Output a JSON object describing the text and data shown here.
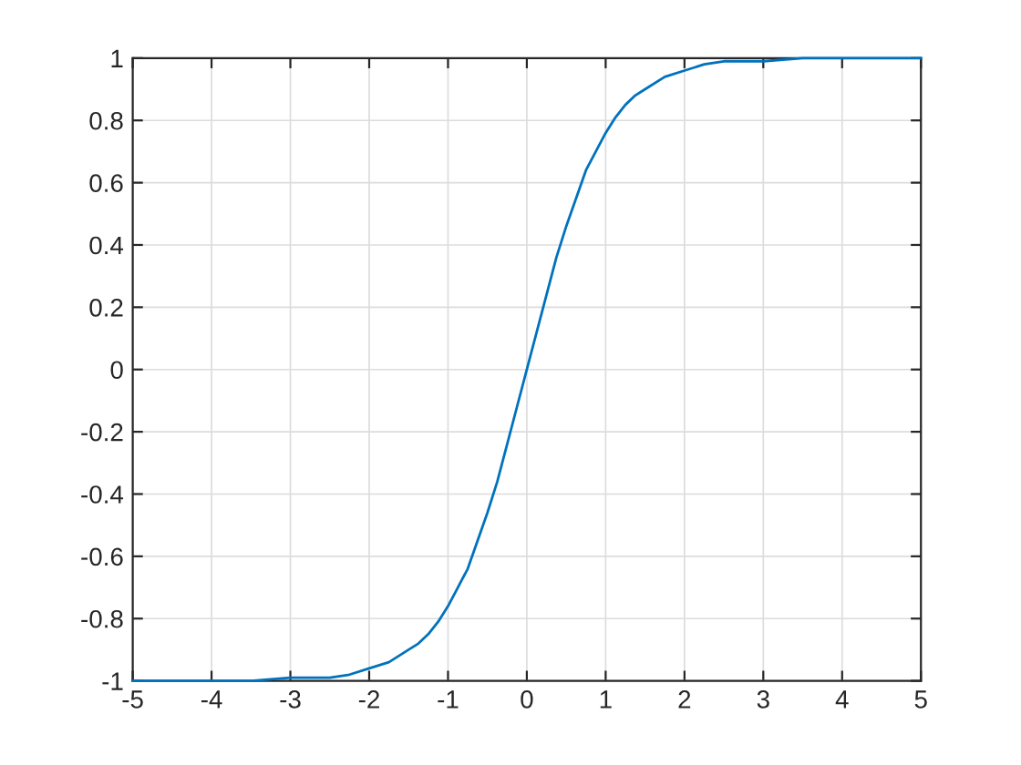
{
  "chart_data": {
    "type": "line",
    "x": [
      -5,
      -4,
      -3.5,
      -3,
      -2.75,
      -2.5,
      -2.25,
      -2,
      -1.75,
      -1.5,
      -1.375,
      -1.25,
      -1.125,
      -1,
      -0.875,
      -0.75,
      -0.625,
      -0.5,
      -0.375,
      -0.25,
      -0.125,
      0,
      0.125,
      0.25,
      0.375,
      0.5,
      0.625,
      0.75,
      0.875,
      1,
      1.125,
      1.25,
      1.375,
      1.5,
      1.75,
      2,
      2.25,
      2.5,
      2.75,
      3,
      3.5,
      4,
      5
    ],
    "series": [
      {
        "color": "#0072bd",
        "values": [
          -1.0,
          -1.0,
          -1.0,
          -0.99,
          -0.99,
          -0.99,
          -0.98,
          -0.96,
          -0.94,
          -0.9,
          -0.88,
          -0.85,
          -0.81,
          -0.76,
          -0.7,
          -0.64,
          -0.55,
          -0.46,
          -0.36,
          -0.24,
          -0.12,
          0,
          0.12,
          0.24,
          0.36,
          0.46,
          0.55,
          0.64,
          0.7,
          0.76,
          0.81,
          0.85,
          0.88,
          0.9,
          0.94,
          0.96,
          0.98,
          0.99,
          0.99,
          0.99,
          1.0,
          1.0,
          1.0
        ]
      }
    ],
    "xlim": [
      -5,
      5
    ],
    "xticks": [
      -5,
      -4,
      -3,
      -2,
      -1,
      0,
      1,
      2,
      3,
      4,
      5
    ],
    "ylim": [
      -1,
      1
    ],
    "yticks": [
      -1,
      -0.8,
      -0.6,
      -0.4,
      -0.2,
      0,
      0.2,
      0.4,
      0.6,
      0.8,
      1
    ],
    "grid": true,
    "line_style": "solid",
    "marker": "none"
  }
}
